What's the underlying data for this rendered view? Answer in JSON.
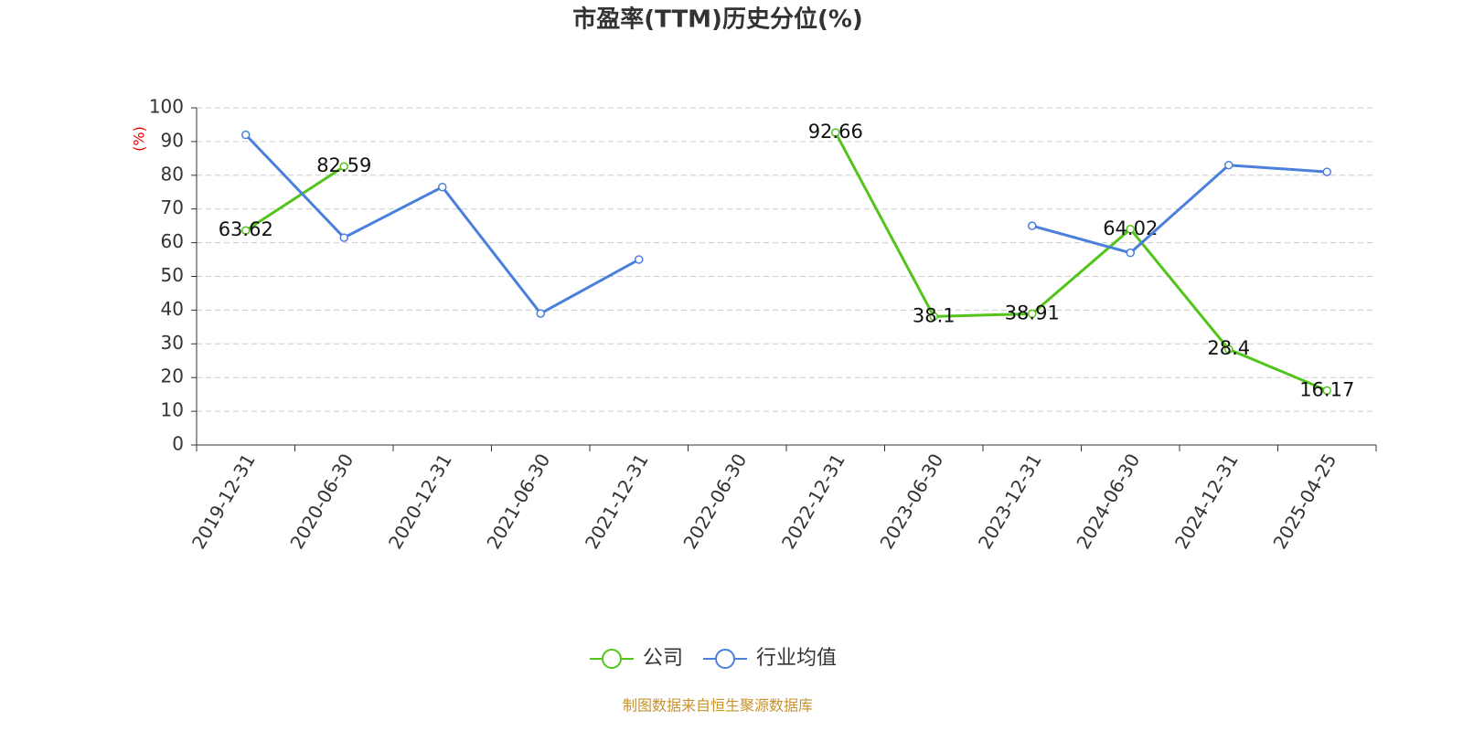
{
  "chart_data": {
    "type": "line",
    "title": "市盈率(TTM)历史分位(%)",
    "y_label": "(%)",
    "source": "制图数据来自恒生聚源数据库",
    "categories": [
      "2019-12-31",
      "2020-06-30",
      "2020-12-31",
      "2021-06-30",
      "2021-12-31",
      "2022-06-30",
      "2022-12-31",
      "2023-06-30",
      "2023-12-31",
      "2024-06-30",
      "2024-12-31",
      "2025-04-25"
    ],
    "series": [
      {
        "name": "公司",
        "color": "#52c41a",
        "labels": true,
        "values": [
          63.62,
          82.59,
          null,
          null,
          null,
          null,
          92.66,
          38.1,
          38.91,
          64.02,
          28.4,
          16.17
        ]
      },
      {
        "name": "行业均值",
        "color": "#4a7fdc",
        "labels": false,
        "values": [
          92,
          61.5,
          76.5,
          39,
          55,
          null,
          null,
          null,
          65,
          57,
          83,
          81
        ]
      }
    ],
    "ylim": [
      0,
      100
    ],
    "yticks": [
      0,
      10,
      20,
      30,
      40,
      50,
      60,
      70,
      80,
      90,
      100
    ],
    "grid": true
  }
}
